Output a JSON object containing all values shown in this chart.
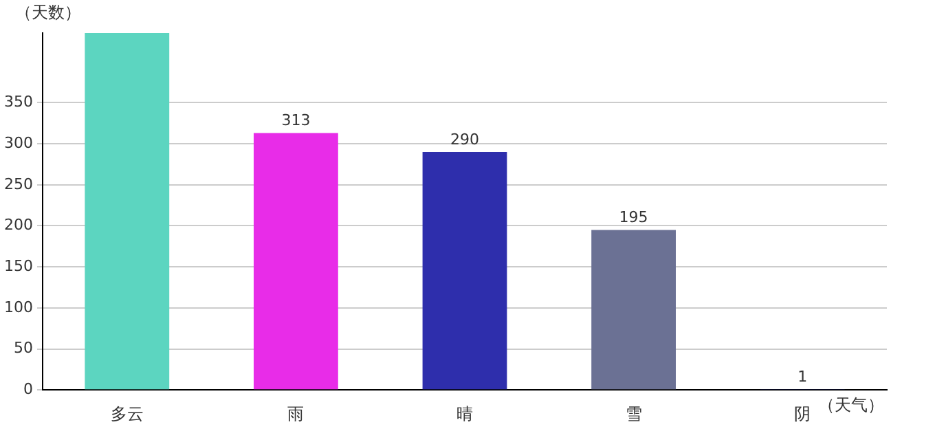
{
  "chart_data": {
    "type": "bar",
    "xlabel": "（天气）",
    "ylabel": "（天数）",
    "categories": [
      "多云",
      "雨",
      "晴",
      "雪",
      "阴"
    ],
    "values": [
      435,
      313,
      290,
      195,
      1
    ],
    "colors": [
      "#5cd5c0",
      "#e82ce8",
      "#2e2eac",
      "#6b7194",
      "#1a237e"
    ],
    "value_labels": [
      null,
      "313",
      "290",
      "195",
      "1"
    ],
    "ylim": [
      0,
      435
    ],
    "yticks": [
      0,
      50,
      100,
      150,
      200,
      250,
      300,
      350
    ],
    "grid": "y",
    "legend": false
  }
}
